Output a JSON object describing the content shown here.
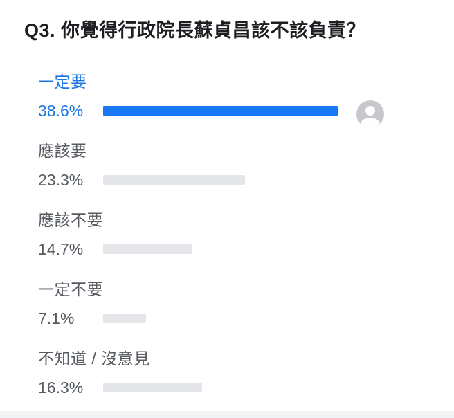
{
  "chart_data": {
    "type": "bar",
    "orientation": "horizontal",
    "title": "Q3. 你覺得行政院長蘇貞昌該不該負責？",
    "categories": [
      "一定要",
      "應該要",
      "應該不要",
      "一定不要",
      "不知道 / 沒意見"
    ],
    "values": [
      38.6,
      23.3,
      14.7,
      7.1,
      16.3
    ],
    "unit": "%",
    "xlim": [
      0,
      45
    ],
    "grid": false,
    "legend": false,
    "highlight_index": 0,
    "options": [
      {
        "label": "一定要",
        "value": 38.6,
        "value_label": "38.6%",
        "selected": true,
        "has_voter_avatar": true
      },
      {
        "label": "應該要",
        "value": 23.3,
        "value_label": "23.3%",
        "selected": false,
        "has_voter_avatar": false
      },
      {
        "label": "應該不要",
        "value": 14.7,
        "value_label": "14.7%",
        "selected": false,
        "has_voter_avatar": false
      },
      {
        "label": "一定不要",
        "value": 7.1,
        "value_label": "7.1%",
        "selected": false,
        "has_voter_avatar": false
      },
      {
        "label": "不知道 / 沒意見",
        "value": 16.3,
        "value_label": "16.3%",
        "selected": false,
        "has_voter_avatar": false
      }
    ]
  },
  "icons": {
    "voter_avatar": "person-avatar-icon"
  },
  "colors": {
    "accent_bar": "#1877f2",
    "accent_text": "#1b74e4",
    "default_bar": "#e4e6ea",
    "label_text": "#565a61",
    "title_text": "#1c1e21",
    "avatar_background": "#c6c8cc",
    "footer_strip": "#f2f3f4",
    "page_background": "#ffffff"
  }
}
